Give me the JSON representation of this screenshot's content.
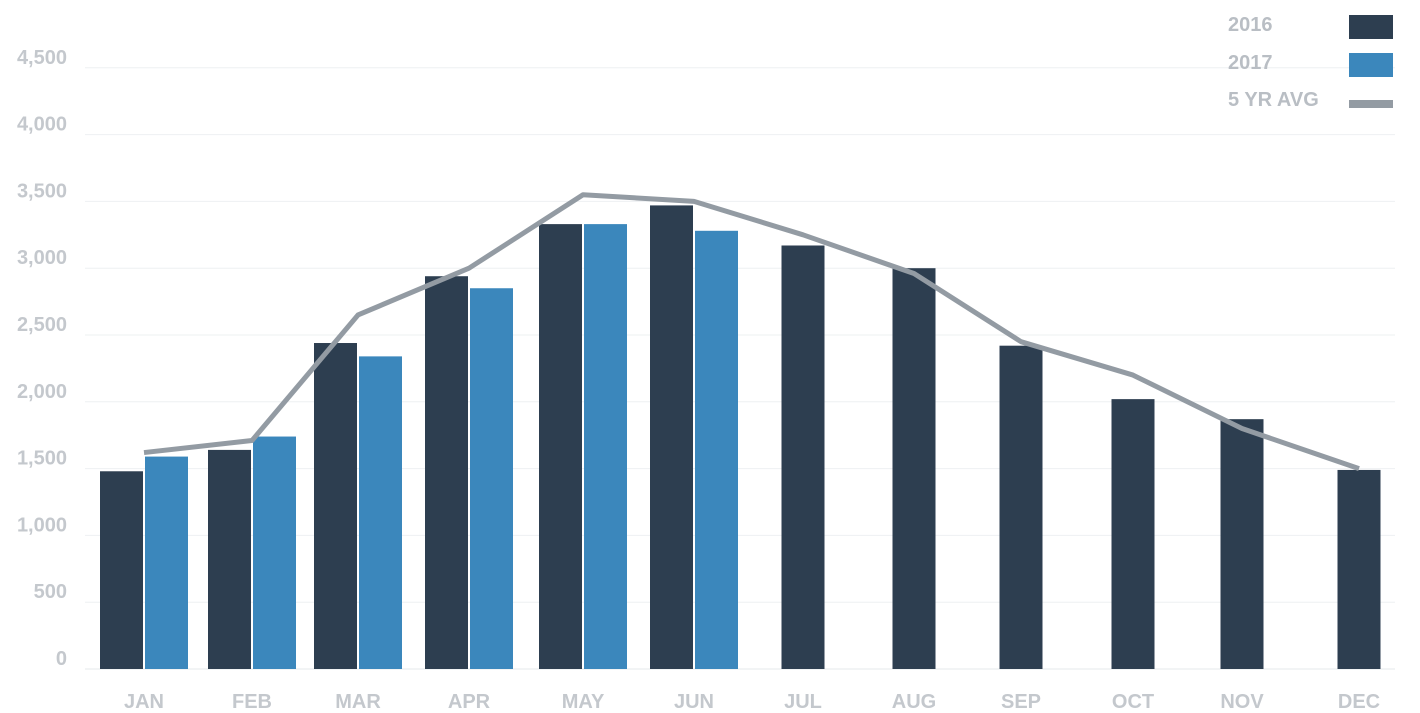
{
  "chart_data": {
    "type": "bar",
    "categories": [
      "JAN",
      "FEB",
      "MAR",
      "APR",
      "MAY",
      "JUN",
      "JUL",
      "AUG",
      "SEP",
      "OCT",
      "NOV",
      "DEC"
    ],
    "series": [
      {
        "name": "2016",
        "type": "bar",
        "color": "#2d3e50",
        "values": [
          1480,
          1640,
          2440,
          2940,
          3330,
          3470,
          3170,
          3000,
          2420,
          2020,
          1870,
          1490
        ]
      },
      {
        "name": "2017",
        "type": "bar",
        "color": "#3b87bc",
        "values": [
          1590,
          1740,
          2340,
          2850,
          3330,
          3280,
          null,
          null,
          null,
          null,
          null,
          null
        ]
      },
      {
        "name": "5 YR AVG",
        "type": "line",
        "color": "#939ba3",
        "values": [
          1620,
          1710,
          2650,
          3000,
          3550,
          3500,
          3250,
          2960,
          2450,
          2200,
          1800,
          1500
        ]
      }
    ],
    "ylim": [
      0,
      4500
    ],
    "yticks": [
      "0",
      "500",
      "1,000",
      "1,500",
      "2,000",
      "2,500",
      "3,000",
      "3,500",
      "4,000",
      "4,500"
    ],
    "ytick_values": [
      0,
      500,
      1000,
      1500,
      2000,
      2500,
      3000,
      3500,
      4000,
      4500
    ],
    "grid": true,
    "legend_position": "top-right",
    "title": "",
    "xlabel": "",
    "ylabel": ""
  }
}
